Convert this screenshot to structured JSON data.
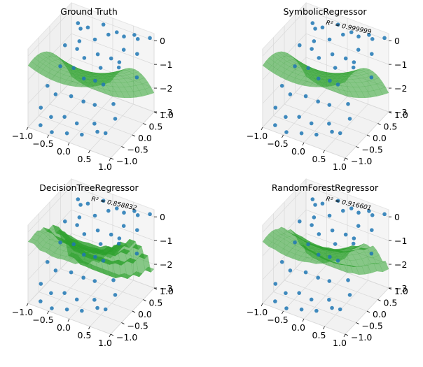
{
  "colors": {
    "surface": "#2ca02c",
    "points": "#1f77b4",
    "pane": "#f2f2f2",
    "grid": "#d9d9d9"
  },
  "chart_data": [
    {
      "type": "scatter",
      "title": "Ground Truth",
      "annotation": "",
      "x_ticks": [
        "−1.0",
        "−0.5",
        "0.0",
        "0.5",
        "1.0"
      ],
      "y_ticks": [
        "−1.0",
        "−0.5",
        "0.0",
        "0.5",
        "1.0"
      ],
      "z_ticks": [
        "0",
        "−1",
        "−2",
        "−3"
      ],
      "xlim": [
        -1,
        1
      ],
      "ylim": [
        -1,
        1
      ],
      "zlim": [
        -3,
        0.3
      ],
      "surface": "model"
    },
    {
      "type": "scatter",
      "title": "SymbolicRegressor",
      "annotation": "R² = 0.999999",
      "x_ticks": [
        "−1.0",
        "−0.5",
        "0.0",
        "0.5",
        "1.0"
      ],
      "y_ticks": [
        "−1.0",
        "−0.5",
        "0.0",
        "0.5",
        "1.0"
      ],
      "z_ticks": [
        "0",
        "−1",
        "−2",
        "−3"
      ],
      "xlim": [
        -1,
        1
      ],
      "ylim": [
        -1,
        1
      ],
      "zlim": [
        -3,
        0.3
      ],
      "surface": "model"
    },
    {
      "type": "scatter",
      "title": "DecisionTreeRegressor",
      "annotation": "R² = 0.858832",
      "x_ticks": [
        "−1.0",
        "−0.5",
        "0.0",
        "0.5",
        "1.0"
      ],
      "y_ticks": [
        "−1.0",
        "−0.5",
        "0.0",
        "0.5",
        "1.0"
      ],
      "z_ticks": [
        "0",
        "−1",
        "−2",
        "−3"
      ],
      "xlim": [
        -1,
        1
      ],
      "ylim": [
        -1,
        1
      ],
      "zlim": [
        -3,
        0.3
      ],
      "surface": "tree"
    },
    {
      "type": "scatter",
      "title": "RandomForestRegressor",
      "annotation": "R² = 0.916601",
      "x_ticks": [
        "−1.0",
        "−0.5",
        "0.0",
        "0.5",
        "1.0"
      ],
      "y_ticks": [
        "−1.0",
        "−0.5",
        "0.0",
        "0.5",
        "1.0"
      ],
      "z_ticks": [
        "0",
        "−1",
        "−2",
        "−3"
      ],
      "xlim": [
        -1,
        1
      ],
      "ylim": [
        -1,
        1
      ],
      "zlim": [
        -3,
        0.3
      ],
      "surface": "forest"
    }
  ],
  "points": [
    {
      "x": -0.8,
      "y": 0.92,
      "z": -0.35
    },
    {
      "x": -0.7,
      "y": 0.85,
      "z": -0.45
    },
    {
      "x": -0.55,
      "y": 0.9,
      "z": -0.35
    },
    {
      "x": -0.3,
      "y": 0.75,
      "z": -0.55
    },
    {
      "x": -0.2,
      "y": 0.95,
      "z": -0.05
    },
    {
      "x": 0.0,
      "y": 0.8,
      "z": -0.2
    },
    {
      "x": 0.15,
      "y": 0.9,
      "z": -0.1
    },
    {
      "x": 0.35,
      "y": 0.85,
      "z": -0.1
    },
    {
      "x": 0.55,
      "y": 0.95,
      "z": 0.0
    },
    {
      "x": 0.7,
      "y": 0.82,
      "z": 0.05
    },
    {
      "x": 0.92,
      "y": 0.96,
      "z": 0.1
    },
    {
      "x": 0.8,
      "y": 0.6,
      "z": -0.3
    },
    {
      "x": -0.92,
      "y": 0.55,
      "z": -1.0
    },
    {
      "x": -0.6,
      "y": 0.5,
      "z": -0.9
    },
    {
      "x": -0.4,
      "y": 0.45,
      "z": -1.1
    },
    {
      "x": -0.1,
      "y": 0.5,
      "z": -0.8
    },
    {
      "x": 0.25,
      "y": 0.45,
      "z": -0.7
    },
    {
      "x": 0.5,
      "y": 0.35,
      "z": -0.6
    },
    {
      "x": 0.62,
      "y": 0.1,
      "z": -0.5
    },
    {
      "x": -0.85,
      "y": 0.2,
      "z": -1.5
    },
    {
      "x": -0.5,
      "y": 0.15,
      "z": -1.3
    },
    {
      "x": -0.2,
      "y": 0.05,
      "z": -1.45
    },
    {
      "x": 0.1,
      "y": 0.0,
      "z": -1.3
    },
    {
      "x": 0.35,
      "y": -0.1,
      "z": -1.2
    },
    {
      "x": -0.95,
      "y": -0.2,
      "z": -2.0
    },
    {
      "x": -0.7,
      "y": -0.3,
      "z": -2.1
    },
    {
      "x": -0.35,
      "y": -0.25,
      "z": -2.0
    },
    {
      "x": 0.0,
      "y": -0.35,
      "z": -1.9
    },
    {
      "x": 0.3,
      "y": -0.4,
      "z": -1.8
    },
    {
      "x": 0.7,
      "y": -0.3,
      "z": -1.6
    },
    {
      "x": -0.9,
      "y": -0.6,
      "z": -2.5
    },
    {
      "x": -0.6,
      "y": -0.7,
      "z": -2.6
    },
    {
      "x": -0.3,
      "y": -0.65,
      "z": -2.45
    },
    {
      "x": 0.05,
      "y": -0.75,
      "z": -2.4
    },
    {
      "x": 0.45,
      "y": -0.7,
      "z": -2.2
    },
    {
      "x": 0.9,
      "y": -0.6,
      "z": -1.8
    },
    {
      "x": -0.75,
      "y": -0.9,
      "z": -2.85
    },
    {
      "x": -0.45,
      "y": -0.95,
      "z": -2.9
    },
    {
      "x": -0.1,
      "y": -0.92,
      "z": -2.75
    },
    {
      "x": 0.25,
      "y": -0.9,
      "z": -2.6
    },
    {
      "x": 0.6,
      "y": -0.85,
      "z": -2.3
    },
    {
      "x": 0.85,
      "y": -0.95,
      "z": -2.1
    },
    {
      "x": 0.95,
      "y": 0.3,
      "z": -0.9
    },
    {
      "x": 0.1,
      "y": 0.25,
      "z": -1.0
    },
    {
      "x": -0.65,
      "y": 0.7,
      "z": -0.8
    },
    {
      "x": 0.45,
      "y": 0.65,
      "z": -0.4
    }
  ]
}
